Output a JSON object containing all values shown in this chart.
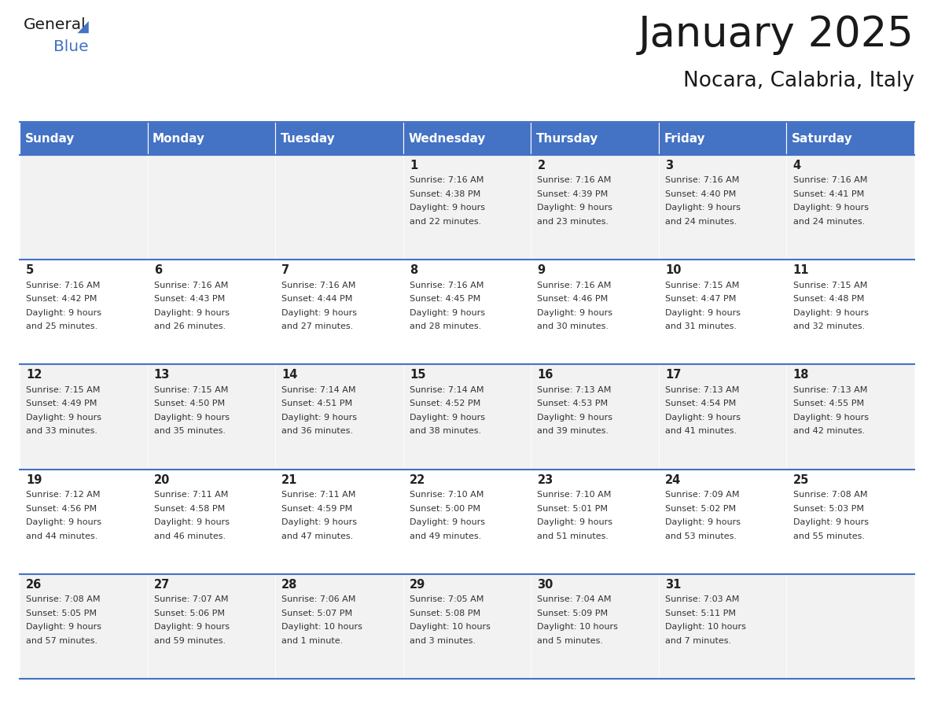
{
  "title": "January 2025",
  "subtitle": "Nocara, Calabria, Italy",
  "header_bg": "#4472C4",
  "header_text_color": "#FFFFFF",
  "cell_bg_odd": "#F2F2F2",
  "cell_bg_even": "#FFFFFF",
  "border_color": "#4472C4",
  "day_names": [
    "Sunday",
    "Monday",
    "Tuesday",
    "Wednesday",
    "Thursday",
    "Friday",
    "Saturday"
  ],
  "days": [
    {
      "day": 1,
      "col": 3,
      "row": 0,
      "sunrise": "7:16 AM",
      "sunset": "4:38 PM",
      "daylight_line1": "Daylight: 9 hours",
      "daylight_line2": "and 22 minutes."
    },
    {
      "day": 2,
      "col": 4,
      "row": 0,
      "sunrise": "7:16 AM",
      "sunset": "4:39 PM",
      "daylight_line1": "Daylight: 9 hours",
      "daylight_line2": "and 23 minutes."
    },
    {
      "day": 3,
      "col": 5,
      "row": 0,
      "sunrise": "7:16 AM",
      "sunset": "4:40 PM",
      "daylight_line1": "Daylight: 9 hours",
      "daylight_line2": "and 24 minutes."
    },
    {
      "day": 4,
      "col": 6,
      "row": 0,
      "sunrise": "7:16 AM",
      "sunset": "4:41 PM",
      "daylight_line1": "Daylight: 9 hours",
      "daylight_line2": "and 24 minutes."
    },
    {
      "day": 5,
      "col": 0,
      "row": 1,
      "sunrise": "7:16 AM",
      "sunset": "4:42 PM",
      "daylight_line1": "Daylight: 9 hours",
      "daylight_line2": "and 25 minutes."
    },
    {
      "day": 6,
      "col": 1,
      "row": 1,
      "sunrise": "7:16 AM",
      "sunset": "4:43 PM",
      "daylight_line1": "Daylight: 9 hours",
      "daylight_line2": "and 26 minutes."
    },
    {
      "day": 7,
      "col": 2,
      "row": 1,
      "sunrise": "7:16 AM",
      "sunset": "4:44 PM",
      "daylight_line1": "Daylight: 9 hours",
      "daylight_line2": "and 27 minutes."
    },
    {
      "day": 8,
      "col": 3,
      "row": 1,
      "sunrise": "7:16 AM",
      "sunset": "4:45 PM",
      "daylight_line1": "Daylight: 9 hours",
      "daylight_line2": "and 28 minutes."
    },
    {
      "day": 9,
      "col": 4,
      "row": 1,
      "sunrise": "7:16 AM",
      "sunset": "4:46 PM",
      "daylight_line1": "Daylight: 9 hours",
      "daylight_line2": "and 30 minutes."
    },
    {
      "day": 10,
      "col": 5,
      "row": 1,
      "sunrise": "7:15 AM",
      "sunset": "4:47 PM",
      "daylight_line1": "Daylight: 9 hours",
      "daylight_line2": "and 31 minutes."
    },
    {
      "day": 11,
      "col": 6,
      "row": 1,
      "sunrise": "7:15 AM",
      "sunset": "4:48 PM",
      "daylight_line1": "Daylight: 9 hours",
      "daylight_line2": "and 32 minutes."
    },
    {
      "day": 12,
      "col": 0,
      "row": 2,
      "sunrise": "7:15 AM",
      "sunset": "4:49 PM",
      "daylight_line1": "Daylight: 9 hours",
      "daylight_line2": "and 33 minutes."
    },
    {
      "day": 13,
      "col": 1,
      "row": 2,
      "sunrise": "7:15 AM",
      "sunset": "4:50 PM",
      "daylight_line1": "Daylight: 9 hours",
      "daylight_line2": "and 35 minutes."
    },
    {
      "day": 14,
      "col": 2,
      "row": 2,
      "sunrise": "7:14 AM",
      "sunset": "4:51 PM",
      "daylight_line1": "Daylight: 9 hours",
      "daylight_line2": "and 36 minutes."
    },
    {
      "day": 15,
      "col": 3,
      "row": 2,
      "sunrise": "7:14 AM",
      "sunset": "4:52 PM",
      "daylight_line1": "Daylight: 9 hours",
      "daylight_line2": "and 38 minutes."
    },
    {
      "day": 16,
      "col": 4,
      "row": 2,
      "sunrise": "7:13 AM",
      "sunset": "4:53 PM",
      "daylight_line1": "Daylight: 9 hours",
      "daylight_line2": "and 39 minutes."
    },
    {
      "day": 17,
      "col": 5,
      "row": 2,
      "sunrise": "7:13 AM",
      "sunset": "4:54 PM",
      "daylight_line1": "Daylight: 9 hours",
      "daylight_line2": "and 41 minutes."
    },
    {
      "day": 18,
      "col": 6,
      "row": 2,
      "sunrise": "7:13 AM",
      "sunset": "4:55 PM",
      "daylight_line1": "Daylight: 9 hours",
      "daylight_line2": "and 42 minutes."
    },
    {
      "day": 19,
      "col": 0,
      "row": 3,
      "sunrise": "7:12 AM",
      "sunset": "4:56 PM",
      "daylight_line1": "Daylight: 9 hours",
      "daylight_line2": "and 44 minutes."
    },
    {
      "day": 20,
      "col": 1,
      "row": 3,
      "sunrise": "7:11 AM",
      "sunset": "4:58 PM",
      "daylight_line1": "Daylight: 9 hours",
      "daylight_line2": "and 46 minutes."
    },
    {
      "day": 21,
      "col": 2,
      "row": 3,
      "sunrise": "7:11 AM",
      "sunset": "4:59 PM",
      "daylight_line1": "Daylight: 9 hours",
      "daylight_line2": "and 47 minutes."
    },
    {
      "day": 22,
      "col": 3,
      "row": 3,
      "sunrise": "7:10 AM",
      "sunset": "5:00 PM",
      "daylight_line1": "Daylight: 9 hours",
      "daylight_line2": "and 49 minutes."
    },
    {
      "day": 23,
      "col": 4,
      "row": 3,
      "sunrise": "7:10 AM",
      "sunset": "5:01 PM",
      "daylight_line1": "Daylight: 9 hours",
      "daylight_line2": "and 51 minutes."
    },
    {
      "day": 24,
      "col": 5,
      "row": 3,
      "sunrise": "7:09 AM",
      "sunset": "5:02 PM",
      "daylight_line1": "Daylight: 9 hours",
      "daylight_line2": "and 53 minutes."
    },
    {
      "day": 25,
      "col": 6,
      "row": 3,
      "sunrise": "7:08 AM",
      "sunset": "5:03 PM",
      "daylight_line1": "Daylight: 9 hours",
      "daylight_line2": "and 55 minutes."
    },
    {
      "day": 26,
      "col": 0,
      "row": 4,
      "sunrise": "7:08 AM",
      "sunset": "5:05 PM",
      "daylight_line1": "Daylight: 9 hours",
      "daylight_line2": "and 57 minutes."
    },
    {
      "day": 27,
      "col": 1,
      "row": 4,
      "sunrise": "7:07 AM",
      "sunset": "5:06 PM",
      "daylight_line1": "Daylight: 9 hours",
      "daylight_line2": "and 59 minutes."
    },
    {
      "day": 28,
      "col": 2,
      "row": 4,
      "sunrise": "7:06 AM",
      "sunset": "5:07 PM",
      "daylight_line1": "Daylight: 10 hours",
      "daylight_line2": "and 1 minute."
    },
    {
      "day": 29,
      "col": 3,
      "row": 4,
      "sunrise": "7:05 AM",
      "sunset": "5:08 PM",
      "daylight_line1": "Daylight: 10 hours",
      "daylight_line2": "and 3 minutes."
    },
    {
      "day": 30,
      "col": 4,
      "row": 4,
      "sunrise": "7:04 AM",
      "sunset": "5:09 PM",
      "daylight_line1": "Daylight: 10 hours",
      "daylight_line2": "and 5 minutes."
    },
    {
      "day": 31,
      "col": 5,
      "row": 4,
      "sunrise": "7:03 AM",
      "sunset": "5:11 PM",
      "daylight_line1": "Daylight: 10 hours",
      "daylight_line2": "and 7 minutes."
    }
  ],
  "fig_width": 11.88,
  "fig_height": 9.18,
  "dpi": 100
}
